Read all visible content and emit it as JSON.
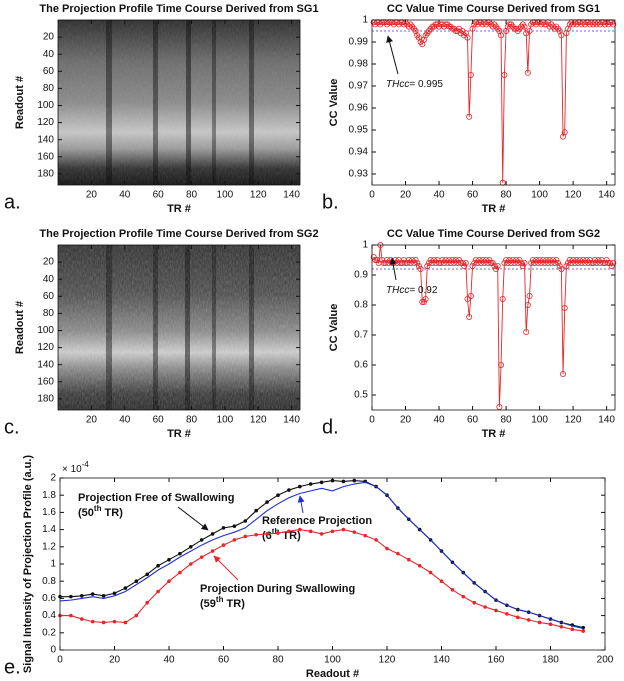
{
  "chart_data": [
    {
      "type": "heatmap",
      "panel": "a.",
      "title": "The Projection Profile Time Course Derived from SG1",
      "x_label": "TR #",
      "y_label": "Readout #",
      "xlim": [
        0,
        145
      ],
      "ylim": [
        193,
        0
      ],
      "xticks": [
        20,
        40,
        60,
        80,
        100,
        120,
        140
      ],
      "yticks": [
        20,
        40,
        60,
        80,
        100,
        120,
        140,
        160,
        180
      ]
    },
    {
      "type": "line",
      "panel": "b.",
      "title": "CC Value Time Course Derived from SG1",
      "x_label": "TR #",
      "y_label": "CC Value",
      "x": [
        1,
        2,
        3,
        4,
        5,
        6,
        7,
        8,
        9,
        10,
        11,
        12,
        13,
        14,
        15,
        16,
        17,
        18,
        19,
        20,
        21,
        22,
        23,
        24,
        25,
        26,
        27,
        28,
        29,
        30,
        31,
        32,
        33,
        34,
        35,
        36,
        37,
        38,
        39,
        40,
        41,
        42,
        43,
        44,
        45,
        46,
        47,
        48,
        49,
        50,
        51,
        52,
        53,
        54,
        55,
        56,
        57,
        58,
        59,
        60,
        61,
        62,
        63,
        64,
        65,
        66,
        67,
        68,
        69,
        70,
        71,
        72,
        73,
        74,
        75,
        76,
        77,
        78,
        79,
        80,
        81,
        82,
        83,
        84,
        85,
        86,
        87,
        88,
        89,
        90,
        91,
        92,
        93,
        94,
        95,
        96,
        97,
        98,
        99,
        100,
        101,
        102,
        103,
        104,
        105,
        106,
        107,
        108,
        109,
        110,
        111,
        112,
        113,
        114,
        115,
        116,
        117,
        118,
        119,
        120,
        121,
        122,
        123,
        124,
        125,
        126,
        127,
        128,
        129,
        130,
        131,
        132,
        133,
        134,
        135,
        136,
        137,
        138,
        139,
        140,
        141,
        142,
        143,
        144
      ],
      "series": [
        {
          "color": "#e8262b",
          "marker": "circle",
          "values": [
            0.999,
            0.998,
            0.999,
            0.999,
            0.998,
            0.999,
            0.999,
            0.999,
            0.998,
            0.999,
            0.999,
            0.999,
            0.998,
            0.999,
            0.999,
            0.998,
            0.999,
            0.999,
            0.998,
            0.999,
            0.998,
            0.997,
            0.998,
            0.997,
            0.996,
            0.995,
            0.993,
            0.992,
            0.99,
            0.989,
            0.991,
            0.993,
            0.994,
            0.995,
            0.996,
            0.997,
            0.997,
            0.998,
            0.998,
            0.997,
            0.998,
            0.998,
            0.997,
            0.998,
            0.998,
            0.997,
            0.997,
            0.996,
            0.996,
            0.995,
            0.995,
            0.996,
            0.994,
            0.995,
            0.993,
            0.994,
            0.992,
            0.956,
            0.975,
            0.996,
            0.998,
            0.999,
            0.998,
            0.999,
            0.999,
            0.998,
            0.999,
            0.998,
            0.999,
            0.999,
            0.998,
            0.997,
            0.998,
            0.997,
            0.996,
            0.995,
            0.993,
            0.926,
            0.975,
            0.995,
            0.997,
            0.998,
            0.998,
            0.997,
            0.996,
            0.996,
            0.995,
            0.996,
            0.997,
            0.998,
            0.997,
            0.994,
            0.976,
            0.995,
            0.998,
            0.999,
            0.999,
            0.998,
            0.999,
            0.999,
            0.998,
            0.999,
            0.998,
            0.998,
            0.999,
            0.997,
            0.998,
            0.997,
            0.996,
            0.997,
            0.996,
            0.995,
            0.993,
            0.947,
            0.949,
            0.994,
            0.996,
            0.998,
            0.999,
            0.998,
            0.999,
            0.998,
            0.999,
            0.999,
            0.998,
            0.999,
            0.998,
            0.999,
            0.999,
            0.998,
            0.999,
            0.998,
            0.999,
            0.998,
            0.999,
            0.998,
            0.999,
            0.999,
            0.998,
            0.999,
            0.998,
            0.999,
            0.999,
            0.998
          ]
        }
      ],
      "xlim": [
        0,
        145
      ],
      "ylim": [
        0.925,
        1
      ],
      "xticks": [
        0,
        20,
        40,
        60,
        80,
        100,
        120,
        140
      ],
      "yticks": [
        0.93,
        0.94,
        0.95,
        0.96,
        0.97,
        0.98,
        0.99,
        1
      ],
      "threshold": {
        "value": 0.995,
        "color": "#3a3adf"
      },
      "annotation": {
        "italic": "THcc",
        "text": "= 0.995"
      }
    },
    {
      "type": "heatmap",
      "panel": "c.",
      "title": "The Projection Profile Time Course Derived from SG2",
      "x_label": "TR #",
      "y_label": "Readout #",
      "xlim": [
        0,
        145
      ],
      "ylim": [
        193,
        0
      ],
      "xticks": [
        20,
        40,
        60,
        80,
        100,
        120,
        140
      ],
      "yticks": [
        20,
        40,
        60,
        80,
        100,
        120,
        140,
        160,
        180
      ]
    },
    {
      "type": "line",
      "panel": "d.",
      "title": "CC Value Time Course Derived from SG2",
      "x_label": "TR #",
      "y_label": "CC Value",
      "x": [
        1,
        2,
        3,
        4,
        5,
        6,
        7,
        8,
        9,
        10,
        11,
        12,
        13,
        14,
        15,
        16,
        17,
        18,
        19,
        20,
        21,
        22,
        23,
        24,
        25,
        26,
        27,
        28,
        29,
        30,
        31,
        32,
        33,
        34,
        35,
        36,
        37,
        38,
        39,
        40,
        41,
        42,
        43,
        44,
        45,
        46,
        47,
        48,
        49,
        50,
        51,
        52,
        53,
        54,
        55,
        56,
        57,
        58,
        59,
        60,
        61,
        62,
        63,
        64,
        65,
        66,
        67,
        68,
        69,
        70,
        71,
        72,
        73,
        74,
        75,
        76,
        77,
        78,
        79,
        80,
        81,
        82,
        83,
        84,
        85,
        86,
        87,
        88,
        89,
        90,
        91,
        92,
        93,
        94,
        95,
        96,
        97,
        98,
        99,
        100,
        101,
        102,
        103,
        104,
        105,
        106,
        107,
        108,
        109,
        110,
        111,
        112,
        113,
        114,
        115,
        116,
        117,
        118,
        119,
        120,
        121,
        122,
        123,
        124,
        125,
        126,
        127,
        128,
        129,
        130,
        131,
        132,
        133,
        134,
        135,
        136,
        137,
        138,
        139,
        140,
        141,
        142,
        143,
        144
      ],
      "series": [
        {
          "color": "#e8262b",
          "marker": "circle",
          "values": [
            0.96,
            0.95,
            0.95,
            0.94,
            1.0,
            0.95,
            0.94,
            0.94,
            0.95,
            0.94,
            0.95,
            0.94,
            0.94,
            0.95,
            0.94,
            0.95,
            0.94,
            0.94,
            0.95,
            0.94,
            0.94,
            0.95,
            0.94,
            0.95,
            0.94,
            0.95,
            0.94,
            0.93,
            0.92,
            0.81,
            0.81,
            0.82,
            0.93,
            0.94,
            0.95,
            0.94,
            0.95,
            0.94,
            0.95,
            0.94,
            0.94,
            0.95,
            0.94,
            0.95,
            0.94,
            0.95,
            0.94,
            0.95,
            0.94,
            0.95,
            0.94,
            0.95,
            0.94,
            0.94,
            0.93,
            0.94,
            0.82,
            0.76,
            0.83,
            0.93,
            0.94,
            0.95,
            0.94,
            0.95,
            0.94,
            0.95,
            0.94,
            0.95,
            0.94,
            0.95,
            0.94,
            0.94,
            0.93,
            0.92,
            0.93,
            0.46,
            0.6,
            0.82,
            0.94,
            0.95,
            0.94,
            0.95,
            0.94,
            0.95,
            0.94,
            0.95,
            0.94,
            0.95,
            0.94,
            0.93,
            0.94,
            0.71,
            0.8,
            0.83,
            0.94,
            0.95,
            0.94,
            0.95,
            0.94,
            0.95,
            0.94,
            0.95,
            0.94,
            0.95,
            0.94,
            0.95,
            0.94,
            0.95,
            0.94,
            0.95,
            0.94,
            0.93,
            0.92,
            0.57,
            0.79,
            0.93,
            0.94,
            0.95,
            0.94,
            0.95,
            0.94,
            0.95,
            0.94,
            0.95,
            0.94,
            0.95,
            0.94,
            0.95,
            0.94,
            0.95,
            0.94,
            0.94,
            0.95,
            0.94,
            0.95,
            0.94,
            0.95,
            0.94,
            0.94,
            0.95,
            0.94,
            0.94,
            0.93,
            0.94
          ]
        }
      ],
      "xlim": [
        0,
        145
      ],
      "ylim": [
        0.45,
        1
      ],
      "xticks": [
        0,
        20,
        40,
        60,
        80,
        100,
        120,
        140
      ],
      "yticks": [
        0.5,
        0.6,
        0.7,
        0.8,
        0.9,
        1
      ],
      "threshold": {
        "value": 0.92,
        "color": "#3a3adf"
      },
      "annotation": {
        "italic": "THcc",
        "text": "= 0.92"
      }
    },
    {
      "type": "line",
      "panel": "e.",
      "x_label": "Readout #",
      "y_label": "Signal Intensity of Projection Profile (a.u.)",
      "y_multiplier": {
        "base": "× 10",
        "exp": "-4"
      },
      "x": [
        0,
        4,
        8,
        12,
        16,
        20,
        24,
        28,
        32,
        36,
        40,
        44,
        48,
        52,
        56,
        60,
        64,
        68,
        72,
        76,
        80,
        84,
        88,
        92,
        96,
        100,
        104,
        108,
        112,
        116,
        120,
        124,
        128,
        132,
        136,
        140,
        144,
        148,
        152,
        156,
        160,
        164,
        168,
        172,
        176,
        180,
        184,
        188,
        192
      ],
      "series": [
        {
          "name": "Projection Free of Swallowing",
          "note": [
            "(50",
            "th",
            " TR)"
          ],
          "color": "#111111",
          "marker": "dot",
          "values": [
            0.62,
            0.62,
            0.63,
            0.65,
            0.63,
            0.66,
            0.72,
            0.8,
            0.88,
            0.98,
            1.05,
            1.12,
            1.2,
            1.28,
            1.35,
            1.42,
            1.44,
            1.5,
            1.62,
            1.72,
            1.8,
            1.86,
            1.9,
            1.93,
            1.95,
            1.97,
            1.96,
            1.97,
            1.96,
            1.9,
            1.8,
            1.65,
            1.52,
            1.4,
            1.28,
            1.15,
            1.02,
            0.9,
            0.78,
            0.68,
            0.58,
            0.52,
            0.47,
            0.44,
            0.4,
            0.36,
            0.32,
            0.29,
            0.26
          ]
        },
        {
          "name": "Reference Projection",
          "note": [
            "(6",
            "th",
            " TR)"
          ],
          "color": "#1f2fd6",
          "marker": "none",
          "values": [
            0.57,
            0.58,
            0.6,
            0.62,
            0.6,
            0.63,
            0.68,
            0.76,
            0.84,
            0.93,
            1.0,
            1.08,
            1.15,
            1.22,
            1.28,
            1.33,
            1.37,
            1.42,
            1.52,
            1.62,
            1.7,
            1.77,
            1.82,
            1.85,
            1.88,
            1.85,
            1.9,
            1.93,
            1.95,
            1.9,
            1.8,
            1.65,
            1.52,
            1.4,
            1.28,
            1.15,
            1.02,
            0.9,
            0.78,
            0.68,
            0.58,
            0.52,
            0.47,
            0.44,
            0.4,
            0.36,
            0.32,
            0.28,
            0.25
          ]
        },
        {
          "name": "Projection During Swallowing",
          "note": [
            "(59",
            "th",
            " TR)"
          ],
          "color": "#e8262b",
          "marker": "dot",
          "values": [
            0.4,
            0.4,
            0.36,
            0.33,
            0.32,
            0.33,
            0.32,
            0.4,
            0.55,
            0.68,
            0.8,
            0.9,
            1.0,
            1.08,
            1.15,
            1.22,
            1.28,
            1.32,
            1.34,
            1.35,
            1.36,
            1.38,
            1.4,
            1.38,
            1.35,
            1.38,
            1.4,
            1.37,
            1.33,
            1.28,
            1.18,
            1.12,
            1.05,
            0.98,
            0.9,
            0.8,
            0.7,
            0.62,
            0.55,
            0.5,
            0.46,
            0.42,
            0.38,
            0.35,
            0.32,
            0.3,
            0.27,
            0.24,
            0.22
          ]
        }
      ],
      "xlim": [
        0,
        200
      ],
      "ylim": [
        0,
        2
      ],
      "xticks": [
        0,
        20,
        40,
        60,
        80,
        100,
        120,
        140,
        160,
        180,
        200
      ],
      "yticks": [
        0,
        0.2,
        0.4,
        0.6,
        0.8,
        1,
        1.2,
        1.4,
        1.6,
        1.8,
        2
      ]
    }
  ]
}
